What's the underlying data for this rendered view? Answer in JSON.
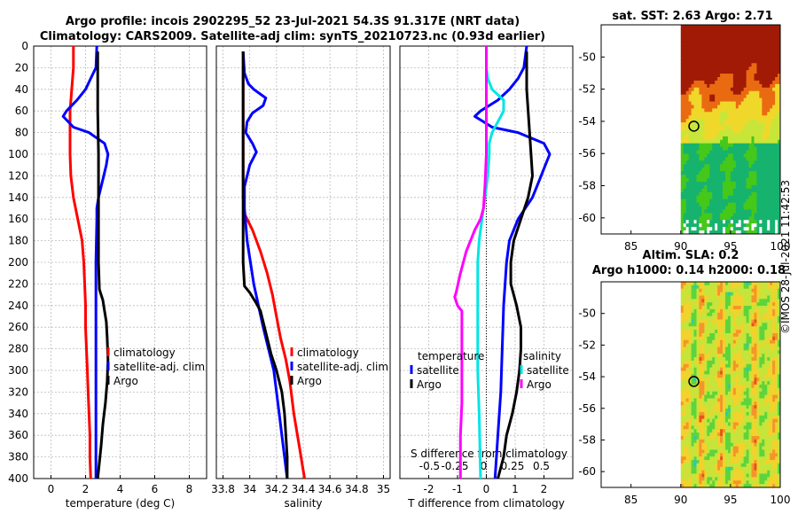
{
  "title_line1": "Argo profile: incois 2902295_52 23-Jul-2021 54.3S 91.317E (NRT data)",
  "title_line2": "Climatology: CARS2009. Satellite-adj clim: synTS_20210723.nc (0.93d earlier)",
  "watermark": "©IMOS 28-Jul-2021 11:42:53",
  "colors": {
    "climatology": "#ff0000",
    "satellite": "#0000ff",
    "argo": "#000000",
    "sat_t": "#00e5e5",
    "sat_s": "#ff00ff"
  },
  "chart_data": [
    {
      "type": "line",
      "name": "temperature",
      "xlabel": "temperature (deg C)",
      "ylabel": "",
      "xlim": [
        -1,
        9
      ],
      "ylim": [
        400,
        0
      ],
      "xticks": [
        0,
        2,
        4,
        6,
        8
      ],
      "yticks": [
        0,
        20,
        40,
        60,
        80,
        100,
        120,
        140,
        160,
        180,
        200,
        220,
        240,
        260,
        280,
        300,
        320,
        340,
        360,
        380,
        400
      ],
      "legend": [
        "climatology",
        "satellite-adj. clim",
        "Argo"
      ],
      "series": [
        {
          "name": "climatology",
          "color": "climatology",
          "depth": [
            0,
            20,
            40,
            60,
            80,
            100,
            120,
            140,
            160,
            180,
            200,
            220,
            240,
            260,
            280,
            300,
            320,
            340,
            360,
            380,
            400
          ],
          "values": [
            1.3,
            1.3,
            1.2,
            1.1,
            1.1,
            1.1,
            1.15,
            1.3,
            1.55,
            1.8,
            1.9,
            1.95,
            2.0,
            2.0,
            2.05,
            2.1,
            2.15,
            2.2,
            2.25,
            2.25,
            2.3
          ]
        },
        {
          "name": "satellite-adj. clim",
          "color": "satellite",
          "depth": [
            0,
            20,
            30,
            40,
            50,
            60,
            65,
            70,
            75,
            80,
            90,
            100,
            110,
            120,
            140,
            150,
            160,
            200,
            260,
            320,
            400
          ],
          "values": [
            2.65,
            2.6,
            2.3,
            2.0,
            1.5,
            0.9,
            0.7,
            1.0,
            1.3,
            2.2,
            3.1,
            3.3,
            3.2,
            3.05,
            2.75,
            2.65,
            2.65,
            2.6,
            2.6,
            2.6,
            2.6
          ]
        },
        {
          "name": "Argo",
          "color": "argo",
          "depth": [
            5,
            20,
            60,
            100,
            150,
            200,
            225,
            235,
            245,
            255,
            270,
            290,
            310,
            330,
            350,
            370,
            385,
            400
          ],
          "values": [
            2.7,
            2.7,
            2.7,
            2.75,
            2.75,
            2.75,
            2.8,
            3.0,
            3.1,
            3.2,
            3.25,
            3.3,
            3.25,
            3.15,
            3.0,
            2.9,
            2.8,
            2.7
          ]
        }
      ]
    },
    {
      "type": "line",
      "name": "salinity",
      "xlabel": "salinity",
      "ylabel": "",
      "xlim": [
        33.75,
        35.05
      ],
      "ylim": [
        400,
        0
      ],
      "xticks": [
        33.8,
        34,
        34.2,
        34.4,
        34.6,
        34.8,
        35
      ],
      "xticklabels": [
        "33.8",
        "34",
        "34.2",
        "34.4",
        "34.6",
        "34.8",
        "35"
      ],
      "legend": [
        "climatology",
        "satellite-adj. clim",
        "Argo"
      ],
      "series": [
        {
          "name": "climatology",
          "color": "climatology",
          "depth": [
            5,
            50,
            100,
            140,
            155,
            160,
            170,
            190,
            210,
            230,
            250,
            270,
            290,
            310,
            340,
            370,
            400
          ],
          "values": [
            33.95,
            33.95,
            33.95,
            33.95,
            33.96,
            33.98,
            34.02,
            34.08,
            34.13,
            34.17,
            34.2,
            34.23,
            34.27,
            34.3,
            34.33,
            34.37,
            34.41
          ]
        },
        {
          "name": "satellite-adj. clim",
          "color": "satellite",
          "depth": [
            5,
            25,
            35,
            40,
            48,
            55,
            62,
            70,
            80,
            90,
            98,
            110,
            130,
            150,
            180,
            220,
            260,
            300,
            340,
            400
          ],
          "values": [
            33.95,
            33.96,
            33.99,
            34.03,
            34.12,
            34.1,
            34.02,
            33.98,
            33.97,
            34.02,
            34.05,
            34.0,
            33.96,
            33.96,
            33.98,
            34.03,
            34.1,
            34.18,
            34.22,
            34.28
          ]
        },
        {
          "name": "Argo",
          "color": "argo",
          "depth": [
            5,
            100,
            200,
            222,
            228,
            238,
            245,
            255,
            270,
            285,
            300,
            320,
            340,
            360,
            380,
            400
          ],
          "values": [
            33.95,
            33.95,
            33.95,
            33.96,
            34.0,
            34.05,
            34.08,
            34.1,
            34.13,
            34.16,
            34.2,
            34.24,
            34.26,
            34.27,
            34.28,
            34.28
          ]
        }
      ]
    },
    {
      "type": "line",
      "name": "difference",
      "xlabel": "T difference from climatology",
      "xlabel_top": "S difference from climatology",
      "xlim": [
        -3,
        3
      ],
      "ylim": [
        400,
        0
      ],
      "xticks": [
        -2,
        -1,
        0,
        1,
        2
      ],
      "xticklabels": [
        "-2",
        "-1",
        "0",
        "1",
        "2"
      ],
      "top_ticks": [
        -2,
        -1,
        0,
        1,
        2
      ],
      "top_ticklabels": [
        "-0.5",
        "-0.25",
        "0",
        "0.25",
        "0.5"
      ],
      "legend_t_title": "temperature",
      "legend_s_title": "salinity",
      "legend_t": [
        "satellite",
        "Argo"
      ],
      "legend_s": [
        "satellite",
        "Argo"
      ],
      "series": [
        {
          "name": "T satellite",
          "color": "satellite",
          "depth": [
            0,
            20,
            30,
            40,
            50,
            60,
            65,
            70,
            75,
            80,
            90,
            100,
            110,
            120,
            140,
            160,
            180,
            200,
            240,
            280,
            320,
            360,
            400
          ],
          "values": [
            1.4,
            1.3,
            1.1,
            0.8,
            0.4,
            -0.2,
            -0.4,
            -0.1,
            0.2,
            1.1,
            2.0,
            2.2,
            2.05,
            1.9,
            1.6,
            1.1,
            0.8,
            0.7,
            0.6,
            0.55,
            0.5,
            0.4,
            0.3
          ]
        },
        {
          "name": "T Argo",
          "color": "argo",
          "depth": [
            5,
            40,
            80,
            120,
            140,
            160,
            180,
            200,
            220,
            240,
            260,
            280,
            300,
            320,
            340,
            360,
            380,
            400
          ],
          "values": [
            1.4,
            1.4,
            1.5,
            1.6,
            1.45,
            1.2,
            0.95,
            0.85,
            0.85,
            1.05,
            1.2,
            1.2,
            1.15,
            1.05,
            0.9,
            0.7,
            0.6,
            0.4
          ]
        },
        {
          "name": "S satellite",
          "color": "sat_t",
          "depth": [
            0,
            20,
            30,
            40,
            50,
            60,
            70,
            80,
            90,
            100,
            120,
            140,
            160,
            180,
            200,
            220,
            240,
            260,
            280,
            300,
            340,
            400
          ],
          "values": [
            0.0,
            0.0,
            0.05,
            0.2,
            0.6,
            0.6,
            0.4,
            0.2,
            0.1,
            0.1,
            0.05,
            -0.05,
            -0.15,
            -0.25,
            -0.3,
            -0.3,
            -0.3,
            -0.3,
            -0.3,
            -0.3,
            -0.25,
            -0.2
          ]
        },
        {
          "name": "S Argo",
          "color": "sat_s",
          "depth": [
            0,
            50,
            100,
            130,
            150,
            160,
            170,
            190,
            210,
            228,
            232,
            240,
            245,
            260,
            280,
            300,
            330,
            360,
            400
          ],
          "values": [
            0.0,
            0.0,
            0.0,
            -0.05,
            -0.1,
            -0.2,
            -0.4,
            -0.7,
            -0.9,
            -1.05,
            -1.1,
            -1.0,
            -0.85,
            -0.85,
            -0.85,
            -0.85,
            -0.85,
            -0.9,
            -0.9
          ]
        }
      ]
    },
    {
      "type": "heatmap",
      "name": "sat-sst",
      "title": "sat. SST: 2.63 Argo: 2.71",
      "xlim": [
        82,
        100
      ],
      "ylim": [
        -61,
        -48
      ],
      "xticks": [
        85,
        90,
        95,
        100
      ],
      "yticks": [
        -50,
        -52,
        -54,
        -56,
        -58,
        -60
      ],
      "marker": {
        "lon": 91.317,
        "lat": -54.3
      }
    },
    {
      "type": "heatmap",
      "name": "altim-sla",
      "title": "Altim. SLA: 0.2",
      "title2": "Argo h1000: 0.14 h2000: 0.18",
      "xlim": [
        82,
        100
      ],
      "ylim": [
        -61,
        -48
      ],
      "xticks": [
        85,
        90,
        95,
        100
      ],
      "yticks": [
        -50,
        -52,
        -54,
        -56,
        -58,
        -60
      ],
      "marker": {
        "lon": 91.317,
        "lat": -54.3
      }
    }
  ]
}
